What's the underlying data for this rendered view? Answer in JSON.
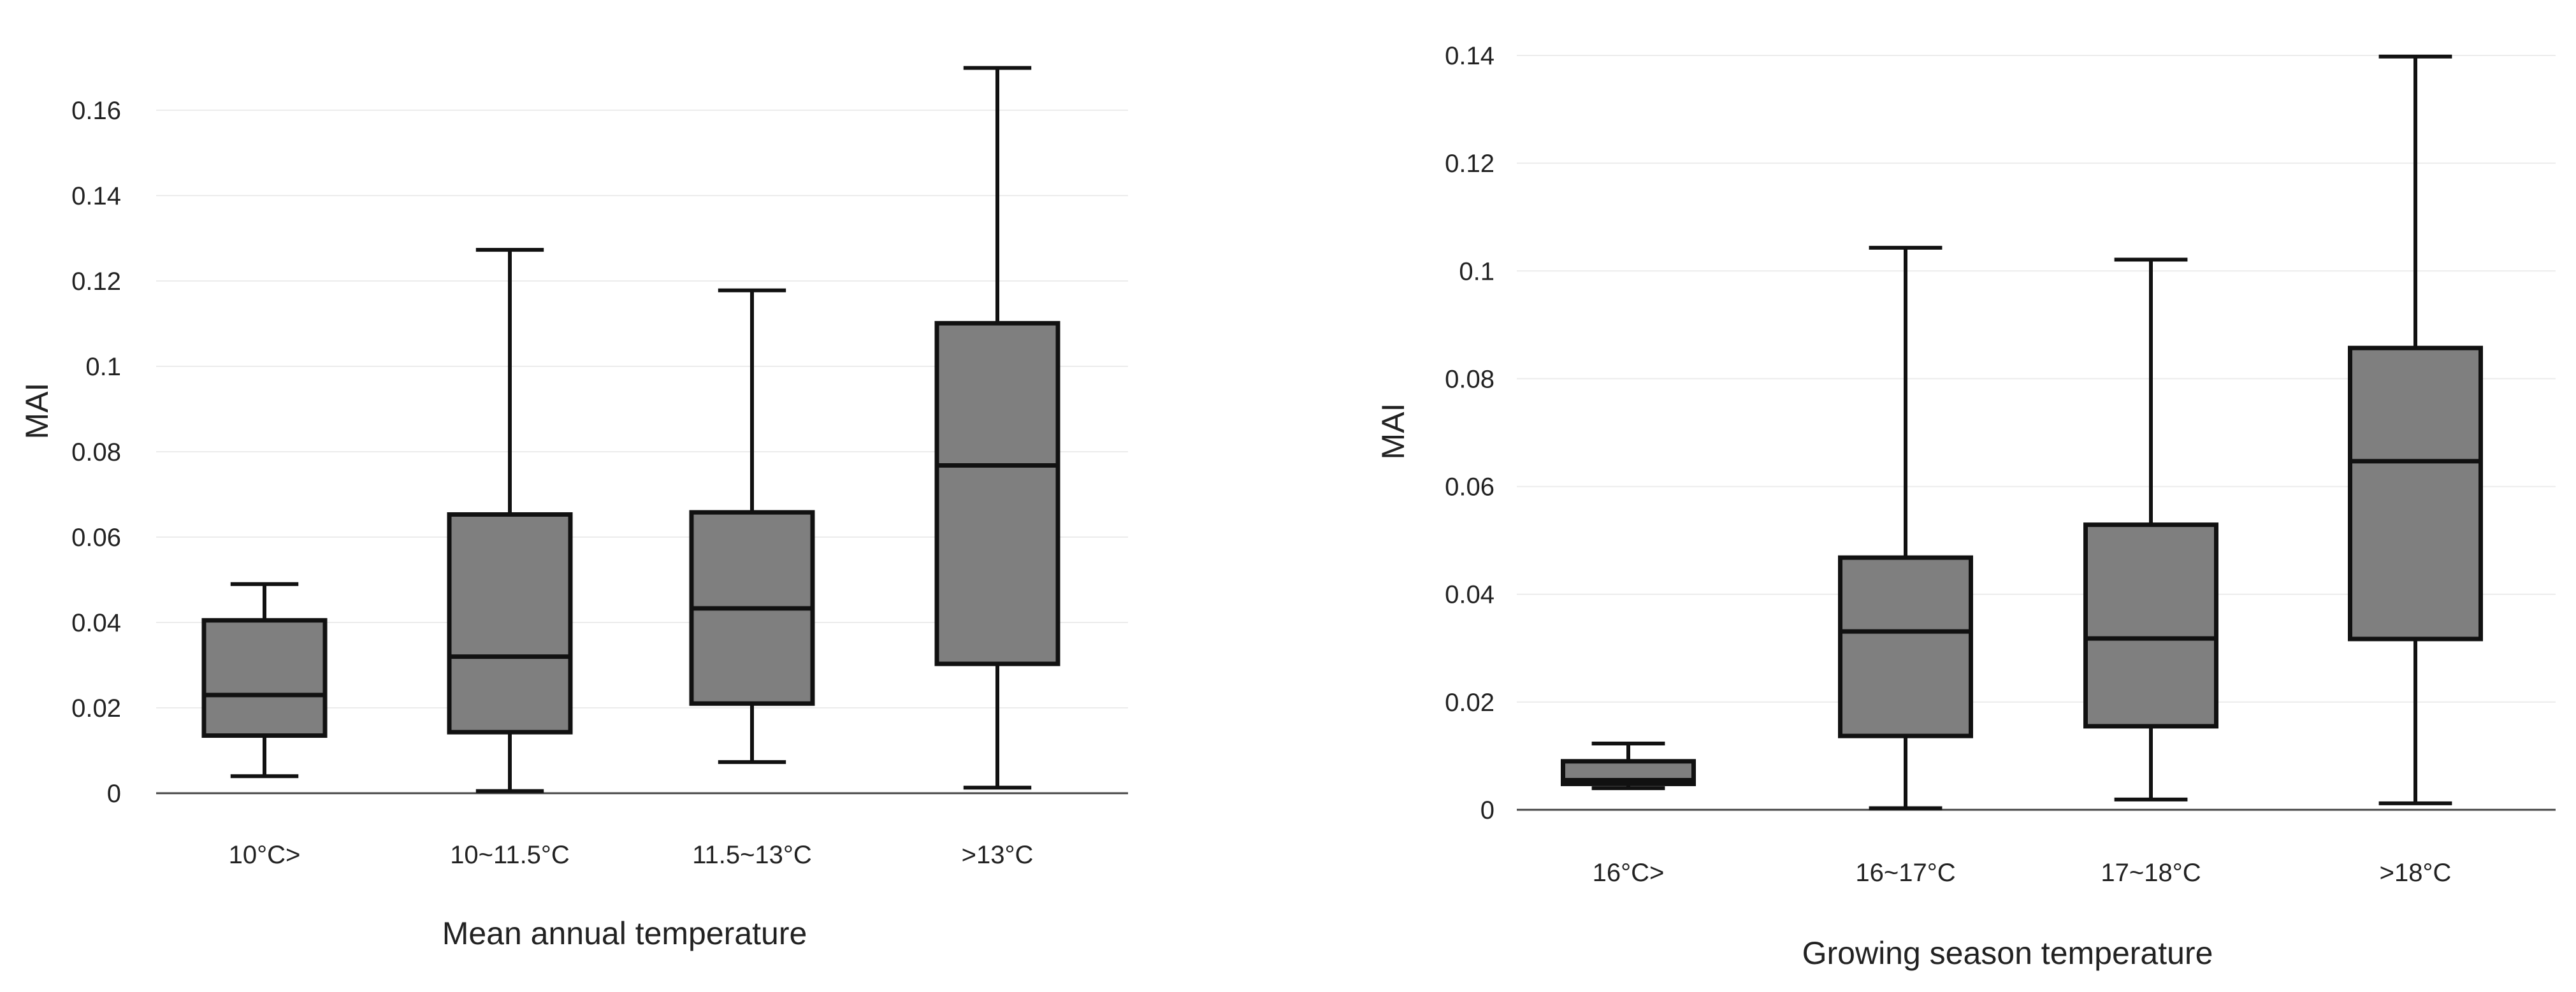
{
  "chart_data": [
    {
      "type": "box",
      "title": "",
      "xlabel": "Mean annual temperature",
      "ylabel": "MAI",
      "ylim": [
        0,
        0.17
      ],
      "yticks": [
        0,
        0.02,
        0.04,
        0.06,
        0.08,
        0.1,
        0.12,
        0.14,
        0.16
      ],
      "ytick_labels": [
        "0",
        "0.02",
        "0.04",
        "0.06",
        "0.08",
        "0.1",
        "0.12",
        "0.14",
        "0.16"
      ],
      "grid": true,
      "box_color": "#7f7f7f",
      "categories": [
        "10°C>",
        "10~11.5°C",
        "11.5~13°C",
        ">13°C"
      ],
      "boxes": [
        {
          "min": 0.004,
          "q1": 0.0135,
          "median": 0.023,
          "q3": 0.0405,
          "max": 0.049
        },
        {
          "min": 0.0005,
          "q1": 0.0143,
          "median": 0.032,
          "q3": 0.0653,
          "max": 0.1273
        },
        {
          "min": 0.0073,
          "q1": 0.021,
          "median": 0.0433,
          "q3": 0.0658,
          "max": 0.1178
        },
        {
          "min": 0.0013,
          "q1": 0.0303,
          "median": 0.0768,
          "q3": 0.1101,
          "max": 0.1699
        }
      ]
    },
    {
      "type": "box",
      "title": "",
      "xlabel": "Growing season temperature",
      "ylabel": "MAI",
      "ylim": [
        0,
        0.14
      ],
      "yticks": [
        0,
        0.02,
        0.04,
        0.06,
        0.08,
        0.1,
        0.12,
        0.14
      ],
      "ytick_labels": [
        "0",
        "0.02",
        "0.04",
        "0.06",
        "0.08",
        "0.1",
        "0.12",
        "0.14"
      ],
      "grid": true,
      "box_color": "#7f7f7f",
      "categories": [
        "16°C>",
        "16~17°C",
        "17~18°C",
        ">18°C"
      ],
      "boxes": [
        {
          "min": 0.004,
          "q1": 0.0048,
          "median": 0.0055,
          "q3": 0.009,
          "max": 0.0123
        },
        {
          "min": 0.0003,
          "q1": 0.0137,
          "median": 0.0331,
          "q3": 0.0468,
          "max": 0.1043
        },
        {
          "min": 0.0019,
          "q1": 0.0155,
          "median": 0.0318,
          "q3": 0.0529,
          "max": 0.1021
        },
        {
          "min": 0.0012,
          "q1": 0.0317,
          "median": 0.0647,
          "q3": 0.0857,
          "max": 0.1398
        }
      ]
    }
  ]
}
